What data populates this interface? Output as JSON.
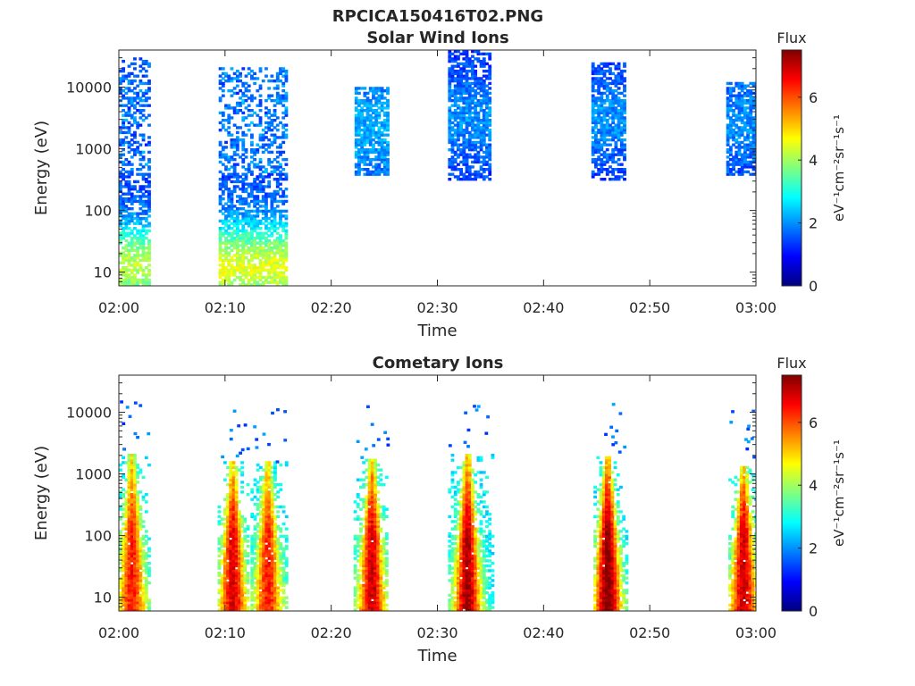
{
  "figure_title": "RPCICA150416T02.PNG",
  "chart_data": [
    {
      "type": "heatmap",
      "title": "Solar Wind Ions",
      "xlabel": "Time",
      "ylabel": "Energy (eV)",
      "yscale": "log",
      "xlim": [
        "02:00",
        "03:00"
      ],
      "ylim": [
        6,
        40000
      ],
      "x_ticks": [
        "02:00",
        "02:10",
        "02:20",
        "02:30",
        "02:40",
        "02:50",
        "03:00"
      ],
      "y_ticks": [
        "10",
        "100",
        "1000",
        "10000"
      ],
      "colorbar": {
        "title": "Flux",
        "label": "eV⁻¹cm⁻²sr⁻¹s⁻¹",
        "range": [
          0,
          7.5
        ],
        "ticks": [
          "0",
          "2",
          "4",
          "6"
        ],
        "colormap": "jet"
      },
      "bursts": [
        {
          "t_start": 0.0,
          "t_end": 2.9,
          "e_low": 6,
          "e_high": 30000,
          "peak_flux": 4.2,
          "peak_energy": 12,
          "base_flux": 1.4
        },
        {
          "t_start": 9.4,
          "t_end": 15.8,
          "e_low": 6,
          "e_high": 20000,
          "peak_flux": 4.5,
          "peak_energy": 12,
          "base_flux": 1.5
        },
        {
          "t_start": 22.2,
          "t_end": 25.2,
          "e_low": 350,
          "e_high": 10000,
          "peak_flux": 2.2,
          "peak_energy": 2000,
          "base_flux": 1.7
        },
        {
          "t_start": 31.0,
          "t_end": 35.0,
          "e_low": 300,
          "e_high": 40000,
          "peak_flux": 2.0,
          "peak_energy": 3000,
          "base_flux": 1.3
        },
        {
          "t_start": 44.5,
          "t_end": 47.5,
          "e_low": 300,
          "e_high": 25000,
          "peak_flux": 2.0,
          "peak_energy": 3000,
          "base_flux": 1.3
        },
        {
          "t_start": 57.2,
          "t_end": 60.0,
          "e_low": 350,
          "e_high": 12000,
          "peak_flux": 2.0,
          "peak_energy": 2500,
          "base_flux": 1.4
        }
      ]
    },
    {
      "type": "heatmap",
      "title": "Cometary Ions",
      "xlabel": "Time",
      "ylabel": "Energy (eV)",
      "yscale": "log",
      "xlim": [
        "02:00",
        "03:00"
      ],
      "ylim": [
        6,
        40000
      ],
      "x_ticks": [
        "02:00",
        "02:10",
        "02:20",
        "02:30",
        "02:40",
        "02:50",
        "03:00"
      ],
      "y_ticks": [
        "10",
        "100",
        "1000",
        "10000"
      ],
      "colorbar": {
        "title": "Flux",
        "label": "eV⁻¹cm⁻²sr⁻¹s⁻¹",
        "range": [
          0,
          7.5
        ],
        "ticks": [
          "0",
          "2",
          "4",
          "6"
        ],
        "colormap": "jet"
      },
      "bursts": [
        {
          "t_start": 0.0,
          "t_end": 2.9,
          "t_center": 1.1,
          "e_low": 6,
          "e_high": 2000,
          "peak_flux": 6.4,
          "base_flux": 2.8
        },
        {
          "t_start": 9.3,
          "t_end": 12.1,
          "t_center": 10.6,
          "e_low": 6,
          "e_high": 1500,
          "peak_flux": 6.8,
          "base_flux": 2.8
        },
        {
          "t_start": 12.4,
          "t_end": 15.9,
          "t_center": 13.9,
          "e_low": 6,
          "e_high": 1500,
          "peak_flux": 6.4,
          "base_flux": 2.8
        },
        {
          "t_start": 22.1,
          "t_end": 25.3,
          "t_center": 23.7,
          "e_low": 6,
          "e_high": 1700,
          "peak_flux": 6.9,
          "base_flux": 2.8
        },
        {
          "t_start": 31.0,
          "t_end": 35.1,
          "t_center": 32.7,
          "e_low": 6,
          "e_high": 2000,
          "peak_flux": 7.2,
          "base_flux": 2.7
        },
        {
          "t_start": 44.7,
          "t_end": 47.7,
          "t_center": 45.9,
          "e_low": 6,
          "e_high": 1800,
          "peak_flux": 7.5,
          "base_flux": 2.7
        },
        {
          "t_start": 57.4,
          "t_end": 60.0,
          "t_center": 58.7,
          "e_low": 6,
          "e_high": 1300,
          "peak_flux": 7.0,
          "base_flux": 2.8
        }
      ]
    }
  ]
}
